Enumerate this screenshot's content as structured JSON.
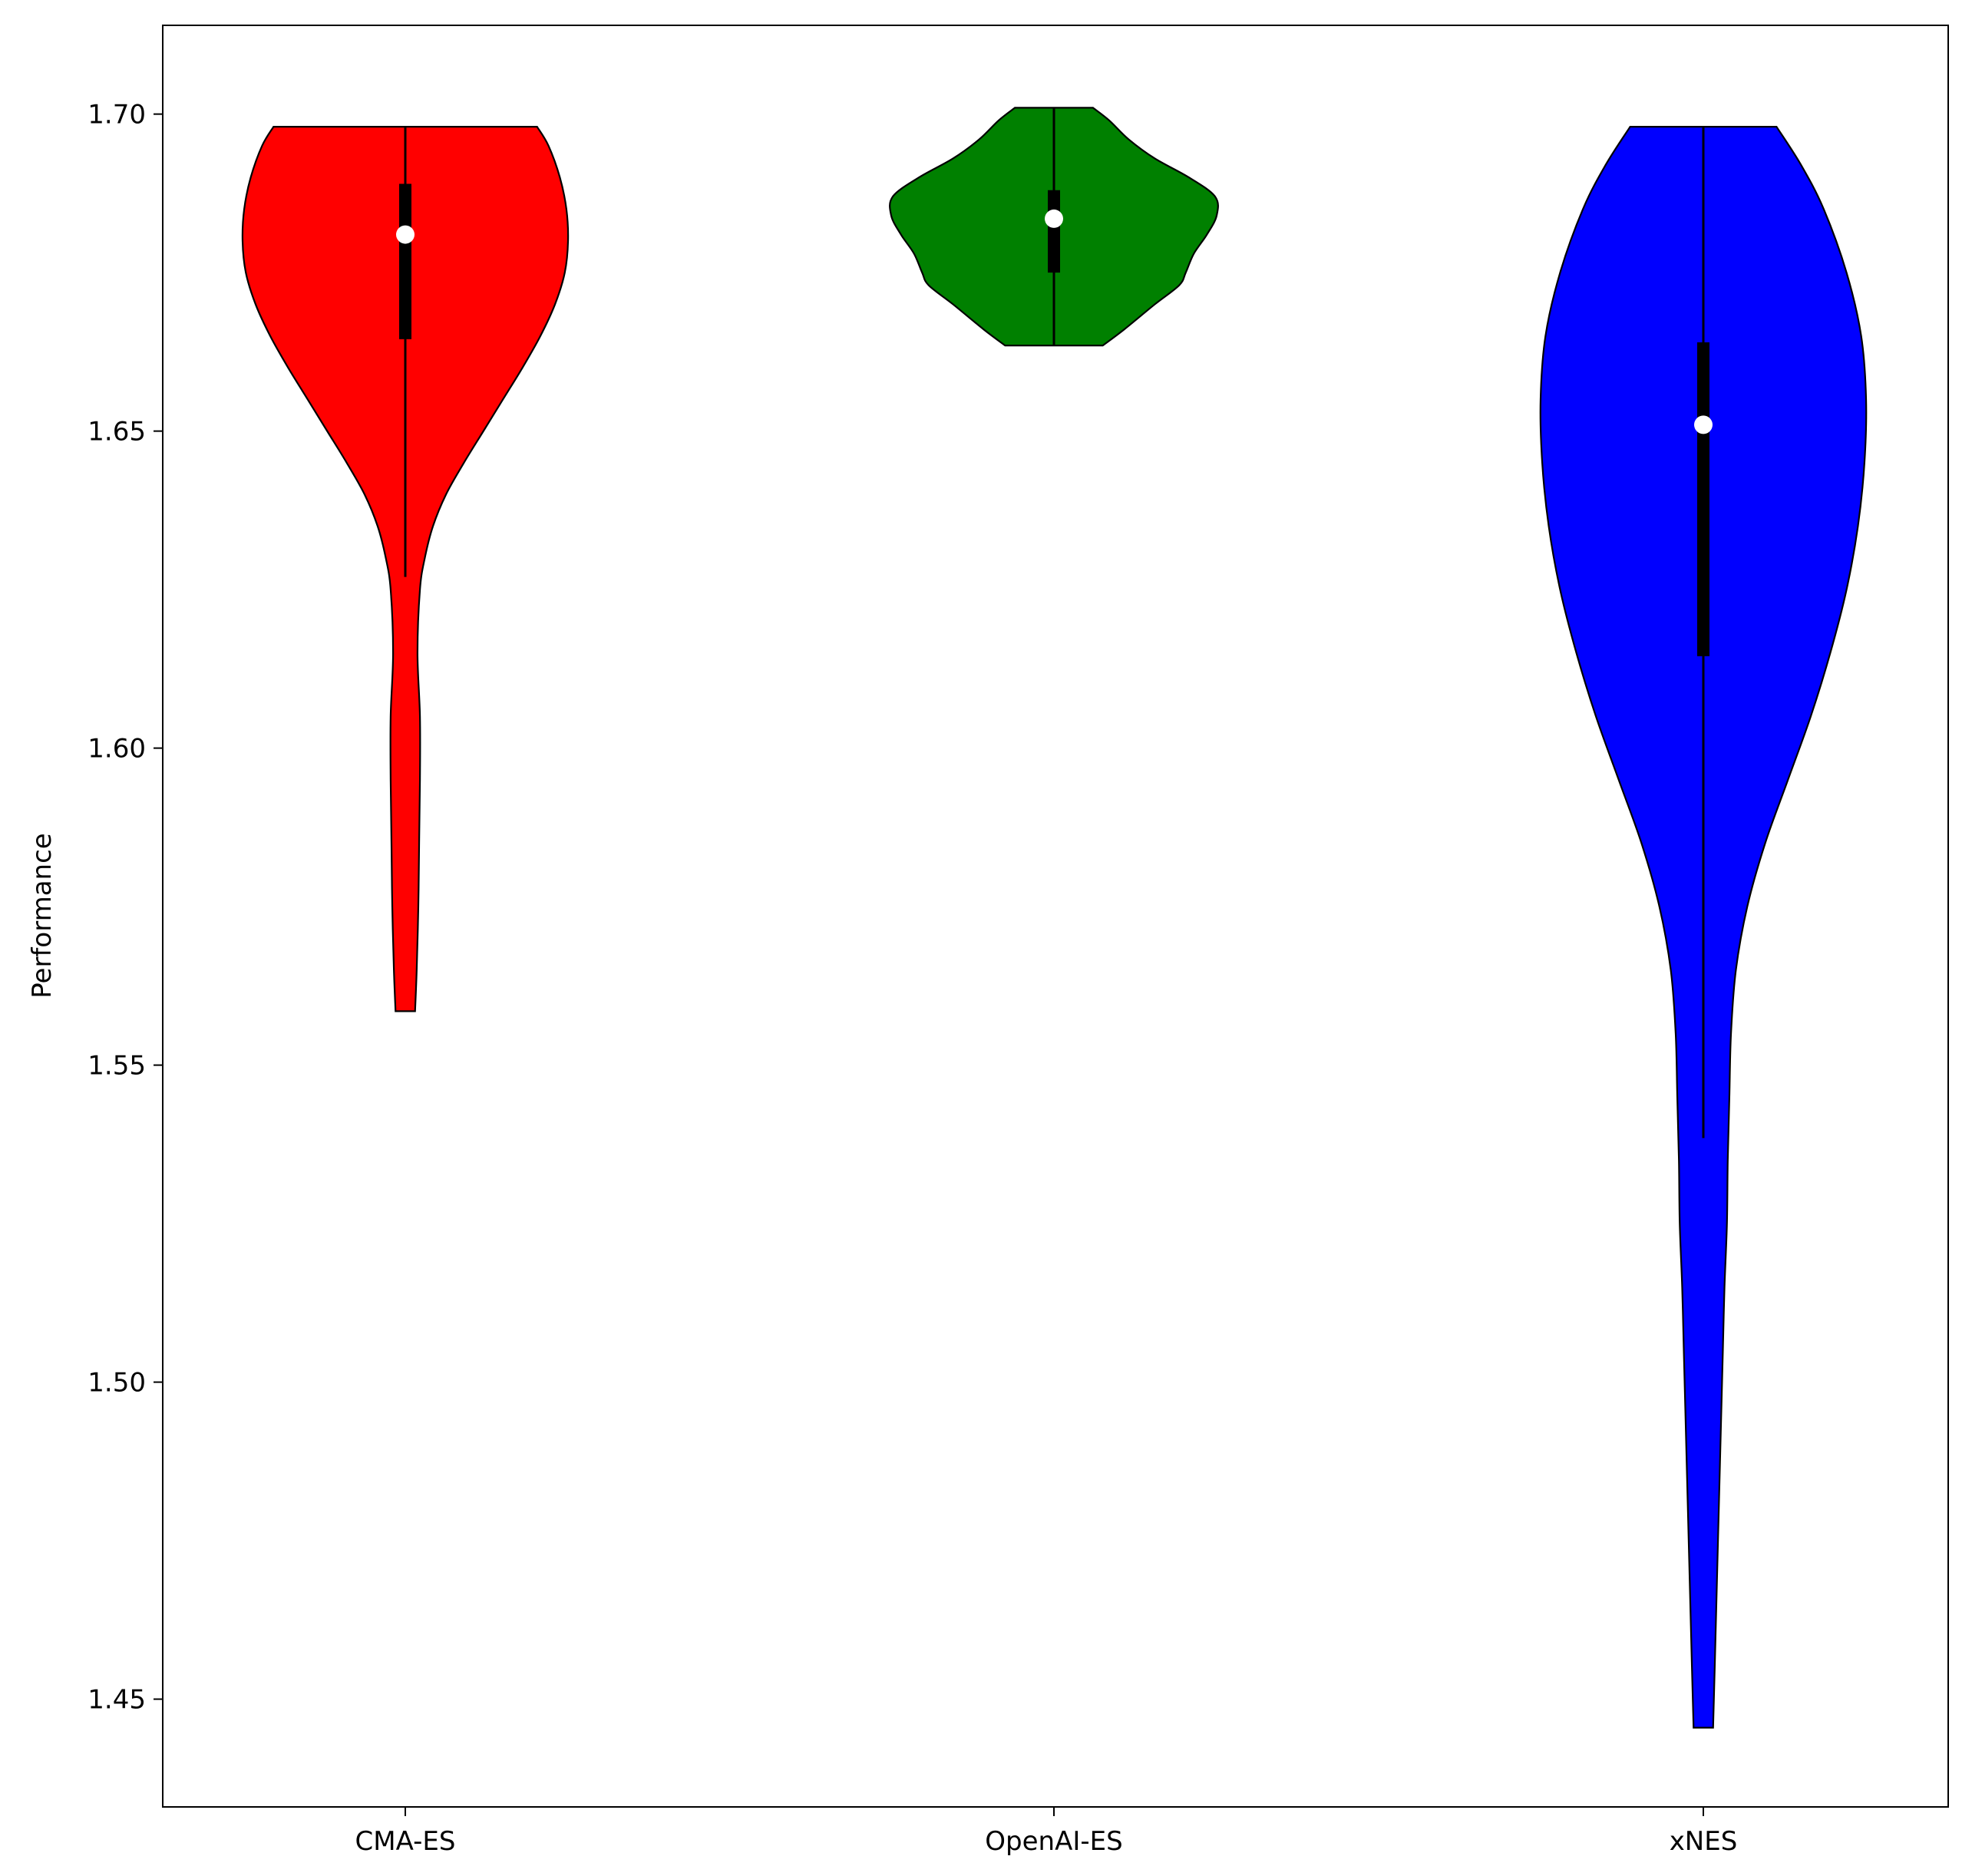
{
  "chart_data": {
    "type": "violin",
    "title": "",
    "xlabel": "",
    "ylabel": "Performance",
    "ylim": [
      1.433,
      1.714
    ],
    "yticks": [
      1.45,
      1.5,
      1.55,
      1.6,
      1.65,
      1.7
    ],
    "ytick_labels": [
      "1.45",
      "1.50",
      "1.55",
      "1.60",
      "1.65",
      "1.70"
    ],
    "grid": false,
    "categories": [
      "CMA-ES",
      "OpenAI-ES",
      "xNES"
    ],
    "series": [
      {
        "color": "#ff0000",
        "min": 1.5585,
        "max": 1.698,
        "q1": 1.6645,
        "median": 1.681,
        "q3": 1.689,
        "whisker_low": 1.627,
        "whisker_high": 1.698,
        "density": [
          [
            1.5585,
            0.06
          ],
          [
            1.565,
            0.07
          ],
          [
            1.575,
            0.08
          ],
          [
            1.585,
            0.085
          ],
          [
            1.595,
            0.09
          ],
          [
            1.605,
            0.09
          ],
          [
            1.615,
            0.075
          ],
          [
            1.625,
            0.09
          ],
          [
            1.63,
            0.12
          ],
          [
            1.635,
            0.17
          ],
          [
            1.64,
            0.25
          ],
          [
            1.645,
            0.36
          ],
          [
            1.65,
            0.48
          ],
          [
            1.655,
            0.6
          ],
          [
            1.66,
            0.72
          ],
          [
            1.665,
            0.83
          ],
          [
            1.67,
            0.92
          ],
          [
            1.675,
            0.98
          ],
          [
            1.68,
            1.0
          ],
          [
            1.685,
            0.99
          ],
          [
            1.69,
            0.95
          ],
          [
            1.695,
            0.88
          ],
          [
            1.698,
            0.81
          ]
        ]
      },
      {
        "color": "#008000",
        "min": 1.6635,
        "max": 1.701,
        "q1": 1.675,
        "median": 1.6835,
        "q3": 1.688,
        "whisker_low": 1.6635,
        "whisker_high": 1.701,
        "density": [
          [
            1.6635,
            0.3
          ],
          [
            1.666,
            0.43
          ],
          [
            1.67,
            0.62
          ],
          [
            1.673,
            0.77
          ],
          [
            1.675,
            0.81
          ],
          [
            1.678,
            0.86
          ],
          [
            1.681,
            0.94
          ],
          [
            1.684,
            1.0
          ],
          [
            1.687,
            0.99
          ],
          [
            1.69,
            0.83
          ],
          [
            1.693,
            0.62
          ],
          [
            1.696,
            0.46
          ],
          [
            1.699,
            0.34
          ],
          [
            1.701,
            0.24
          ]
        ]
      },
      {
        "color": "#0000ff",
        "min": 1.4455,
        "max": 1.698,
        "q1": 1.6145,
        "median": 1.651,
        "q3": 1.664,
        "whisker_low": 1.5385,
        "whisker_high": 1.698,
        "density": [
          [
            1.4455,
            0.06
          ],
          [
            1.455,
            0.07
          ],
          [
            1.465,
            0.08
          ],
          [
            1.475,
            0.09
          ],
          [
            1.485,
            0.1
          ],
          [
            1.495,
            0.11
          ],
          [
            1.505,
            0.12
          ],
          [
            1.515,
            0.13
          ],
          [
            1.525,
            0.145
          ],
          [
            1.535,
            0.15
          ],
          [
            1.545,
            0.16
          ],
          [
            1.555,
            0.17
          ],
          [
            1.565,
            0.2
          ],
          [
            1.575,
            0.27
          ],
          [
            1.585,
            0.38
          ],
          [
            1.595,
            0.52
          ],
          [
            1.605,
            0.66
          ],
          [
            1.615,
            0.78
          ],
          [
            1.625,
            0.88
          ],
          [
            1.635,
            0.95
          ],
          [
            1.645,
            0.99
          ],
          [
            1.655,
            1.0
          ],
          [
            1.665,
            0.97
          ],
          [
            1.675,
            0.88
          ],
          [
            1.685,
            0.74
          ],
          [
            1.692,
            0.6
          ],
          [
            1.698,
            0.45
          ]
        ]
      }
    ]
  }
}
